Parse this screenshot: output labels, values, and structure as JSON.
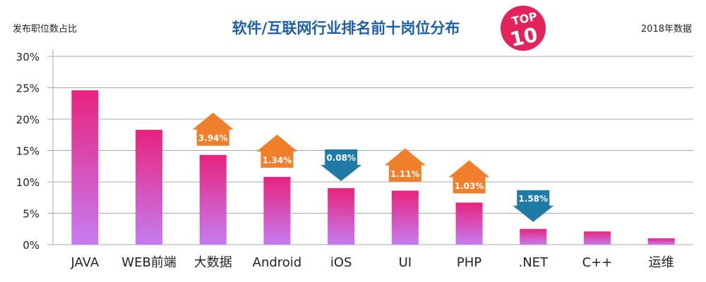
{
  "header": {
    "ylabel": "发布职位数占比",
    "title": "软件/互联网行业排名前十岗位分布",
    "year_note": "2018年数据",
    "badge_top": "TOP",
    "badge_num": "10"
  },
  "chart_data": {
    "type": "bar",
    "title": "软件/互联网行业排名前十岗位分布",
    "ylabel": "发布职位数占比",
    "xlabel": "",
    "ylim": [
      0,
      30
    ],
    "yticks": [
      0,
      5,
      10,
      15,
      20,
      25,
      30
    ],
    "ytick_labels": [
      "0%",
      "5%",
      "10%",
      "15%",
      "20%",
      "25%",
      "30%"
    ],
    "grid": true,
    "categories": [
      "JAVA",
      "WEB前端",
      "大数据",
      "Android",
      "iOS",
      "UI",
      "PHP",
      ".NET",
      "C++",
      "运维"
    ],
    "values": [
      24.6,
      18.3,
      14.3,
      10.8,
      9.0,
      8.6,
      6.7,
      2.5,
      2.1,
      1.0
    ],
    "annotations": [
      {
        "category": "大数据",
        "direction": "up",
        "text": "3.94%"
      },
      {
        "category": "Android",
        "direction": "up",
        "text": "1.34%"
      },
      {
        "category": "iOS",
        "direction": "down",
        "text": "0.08%"
      },
      {
        "category": "UI",
        "direction": "up",
        "text": "1.11%"
      },
      {
        "category": "PHP",
        "direction": "up",
        "text": "1.03%"
      },
      {
        "category": ".NET",
        "direction": "down",
        "text": "1.58%"
      }
    ],
    "colors": {
      "bar_top": "#e8237e",
      "bar_bottom": "#c57cf0",
      "arrow_up": "#f07f2b",
      "arrow_down": "#1f7aa8",
      "grid": "#a8a8a8",
      "title": "#1d5fa8",
      "badge": "#e3245c"
    }
  }
}
